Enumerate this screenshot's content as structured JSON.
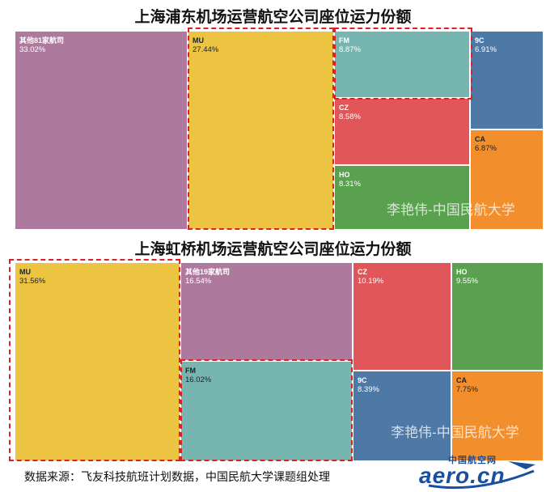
{
  "chart_data": [
    {
      "type": "treemap",
      "title": "上海浦东机场运营航空公司座位运力份额",
      "watermark": "李艳伟-中国民航大学",
      "items": [
        {
          "name": "其他81家航司",
          "value": 33.02,
          "label": "33.02%",
          "color": "#ad7a9e"
        },
        {
          "name": "MU",
          "value": 27.44,
          "label": "27.44%",
          "color": "#ecc442",
          "highlighted": true
        },
        {
          "name": "FM",
          "value": 8.87,
          "label": "8.87%",
          "color": "#76b5b0",
          "highlighted": true
        },
        {
          "name": "9C",
          "value": 6.91,
          "label": "6.91%",
          "color": "#4e79a7"
        },
        {
          "name": "CZ",
          "value": 8.58,
          "label": "8.58%",
          "color": "#e15759"
        },
        {
          "name": "CA",
          "value": 6.87,
          "label": "6.87%",
          "color": "#f28e2b"
        },
        {
          "name": "HO",
          "value": 8.31,
          "label": "8.31%",
          "color": "#59a14f"
        }
      ]
    },
    {
      "type": "treemap",
      "title": "上海虹桥机场运营航空公司座位运力份额",
      "watermark": "李艳伟-中国民航大学",
      "items": [
        {
          "name": "MU",
          "value": 31.56,
          "label": "31.56%",
          "color": "#ecc442",
          "highlighted": true
        },
        {
          "name": "其他19家航司",
          "value": 16.54,
          "label": "16.54%",
          "color": "#ad7a9e"
        },
        {
          "name": "FM",
          "value": 16.02,
          "label": "16.02%",
          "color": "#76b5b0",
          "highlighted": true
        },
        {
          "name": "CZ",
          "value": 10.19,
          "label": "10.19%",
          "color": "#e15759"
        },
        {
          "name": "HO",
          "value": 9.55,
          "label": "9.55%",
          "color": "#59a14f"
        },
        {
          "name": "9C",
          "value": 8.39,
          "label": "8.39%",
          "color": "#4e79a7"
        },
        {
          "name": "CA",
          "value": 7.75,
          "label": "7.75%",
          "color": "#f28e2b"
        }
      ]
    }
  ],
  "source_note": "数据来源：飞友科技航班计划数据，中国民航大学课题组处理",
  "logo": {
    "top_text": "中国航空网",
    "main_text": "aero.cn"
  }
}
